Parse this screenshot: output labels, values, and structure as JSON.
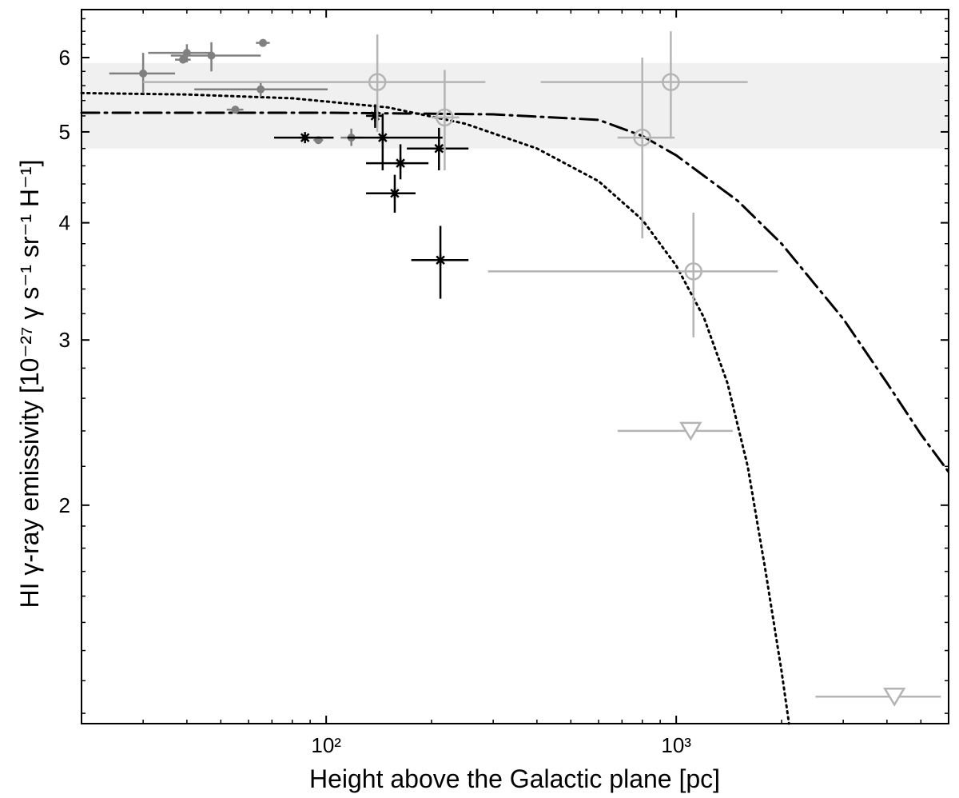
{
  "chart_data": {
    "type": "scatter",
    "xlabel": "Height above the Galactic plane [pc]",
    "ylabel": "HI γ-ray emissivity [10⁻²⁷ γ s⁻¹ sr⁻¹ H⁻¹]",
    "xscale": "log",
    "yscale": "log",
    "xlim": [
      20,
      6000
    ],
    "ylim": [
      1.17,
      6.75
    ],
    "x_ticks": [
      {
        "value": 100,
        "label": "10²"
      },
      {
        "value": 1000,
        "label": "10³"
      }
    ],
    "y_ticks": [
      {
        "value": 2,
        "label": "2"
      },
      {
        "value": 3,
        "label": "3"
      },
      {
        "value": 4,
        "label": "4"
      },
      {
        "value": 5,
        "label": "5"
      },
      {
        "value": 6,
        "label": "6"
      }
    ],
    "band": {
      "y_low": 4.8,
      "y_high": 5.92,
      "color": "#f0f0f0"
    },
    "curves": [
      {
        "style": "dotted",
        "color": "#000000",
        "points": [
          [
            20,
            5.5
          ],
          [
            40,
            5.48
          ],
          [
            80,
            5.43
          ],
          [
            150,
            5.31
          ],
          [
            250,
            5.1
          ],
          [
            400,
            4.8
          ],
          [
            600,
            4.43
          ],
          [
            800,
            4.03
          ],
          [
            1000,
            3.6
          ],
          [
            1200,
            3.17
          ],
          [
            1400,
            2.7
          ],
          [
            1600,
            2.2
          ],
          [
            1800,
            1.7
          ],
          [
            2000,
            1.33
          ],
          [
            2100,
            1.17
          ]
        ]
      },
      {
        "style": "dashdot",
        "color": "#000000",
        "points": [
          [
            20,
            5.24
          ],
          [
            100,
            5.24
          ],
          [
            300,
            5.22
          ],
          [
            600,
            5.15
          ],
          [
            800,
            4.95
          ],
          [
            1000,
            4.72
          ],
          [
            1500,
            4.22
          ],
          [
            2000,
            3.8
          ],
          [
            3000,
            3.16
          ],
          [
            4000,
            2.7
          ],
          [
            5000,
            2.38
          ],
          [
            6000,
            2.17
          ]
        ]
      }
    ],
    "series": [
      {
        "marker": "dot",
        "color": "#808080",
        "points": [
          {
            "x": 30,
            "y": 5.77,
            "xerr": [
              24,
              37
            ],
            "yerr": [
              5.5,
              6.07
            ]
          },
          {
            "x": 40,
            "y": 6.07,
            "xerr": [
              31,
              47
            ],
            "yerr": [
              5.93,
              6.2
            ]
          },
          {
            "x": 39,
            "y": 5.97,
            "xerr": [
              37,
              41
            ],
            "yerr": [
              5.97,
              5.97
            ]
          },
          {
            "x": 47,
            "y": 6.03,
            "xerr": [
              36,
              65
            ],
            "yerr": [
              5.8,
              6.23
            ]
          },
          {
            "x": 66,
            "y": 6.22,
            "xerr": [
              63,
              69
            ],
            "yerr": [
              6.22,
              6.22
            ]
          },
          {
            "x": 65,
            "y": 5.55,
            "xerr": [
              42,
              101
            ],
            "yerr": [
              5.45,
              5.64
            ]
          },
          {
            "x": 55,
            "y": 5.28,
            "xerr": [
              52,
              58
            ],
            "yerr": [
              5.28,
              5.28
            ]
          },
          {
            "x": 95,
            "y": 4.9,
            "xerr": [
              92,
              98
            ],
            "yerr": [
              4.9,
              4.9
            ]
          },
          {
            "x": 118,
            "y": 4.93,
            "xerr": [
              110,
              127
            ],
            "yerr": [
              4.83,
              5.04
            ]
          }
        ]
      },
      {
        "marker": "star",
        "color": "#000000",
        "points": [
          {
            "x": 87,
            "y": 4.93,
            "xerr": [
              71,
              105
            ],
            "yerr": [
              4.93,
              4.93
            ]
          },
          {
            "x": 145,
            "y": 4.93,
            "xerr": [
              115,
              215
            ],
            "yerr": [
              4.55,
              5.23
            ]
          },
          {
            "x": 163,
            "y": 4.63,
            "xerr": [
              130,
              196
            ],
            "yerr": [
              4.45,
              4.85
            ]
          },
          {
            "x": 157,
            "y": 4.3,
            "xerr": [
              130,
              180
            ],
            "yerr": [
              4.1,
              4.5
            ]
          },
          {
            "x": 210,
            "y": 4.8,
            "xerr": [
              170,
              255
            ],
            "yerr": [
              4.55,
              5.05
            ]
          },
          {
            "x": 212,
            "y": 3.65,
            "xerr": [
              175,
              255
            ],
            "yerr": [
              3.32,
              3.97
            ]
          },
          {
            "x": 138,
            "y": 5.2,
            "xerr": [
              130,
              145
            ],
            "yerr": [
              5.05,
              5.35
            ]
          }
        ]
      },
      {
        "marker": "open-circle",
        "color": "#b4b4b4",
        "points": [
          {
            "x": 140,
            "y": 5.65,
            "xerr": [
              30,
              285
            ],
            "yerr": [
              5.0,
              6.35
            ]
          },
          {
            "x": 218,
            "y": 5.18,
            "xerr": [
              200,
              240
            ],
            "yerr": [
              4.55,
              5.82
            ]
          },
          {
            "x": 965,
            "y": 5.65,
            "xerr": [
              410,
              1600
            ],
            "yerr": [
              4.93,
              6.4
            ]
          },
          {
            "x": 800,
            "y": 4.93,
            "xerr": [
              680,
              990
            ],
            "yerr": [
              3.85,
              6.0
            ]
          },
          {
            "x": 1120,
            "y": 3.55,
            "xerr": [
              290,
              1950
            ],
            "yerr": [
              3.02,
              4.1
            ]
          }
        ]
      },
      {
        "marker": "open-triangle-down",
        "color": "#b4b4b4",
        "points": [
          {
            "x": 1100,
            "y": 2.4,
            "xerr": [
              680,
              1450
            ],
            "yerr": [
              2.4,
              2.4
            ]
          },
          {
            "x": 4200,
            "y": 1.25,
            "xerr": [
              2500,
              5700
            ],
            "yerr": [
              1.25,
              1.25
            ]
          }
        ]
      }
    ]
  }
}
